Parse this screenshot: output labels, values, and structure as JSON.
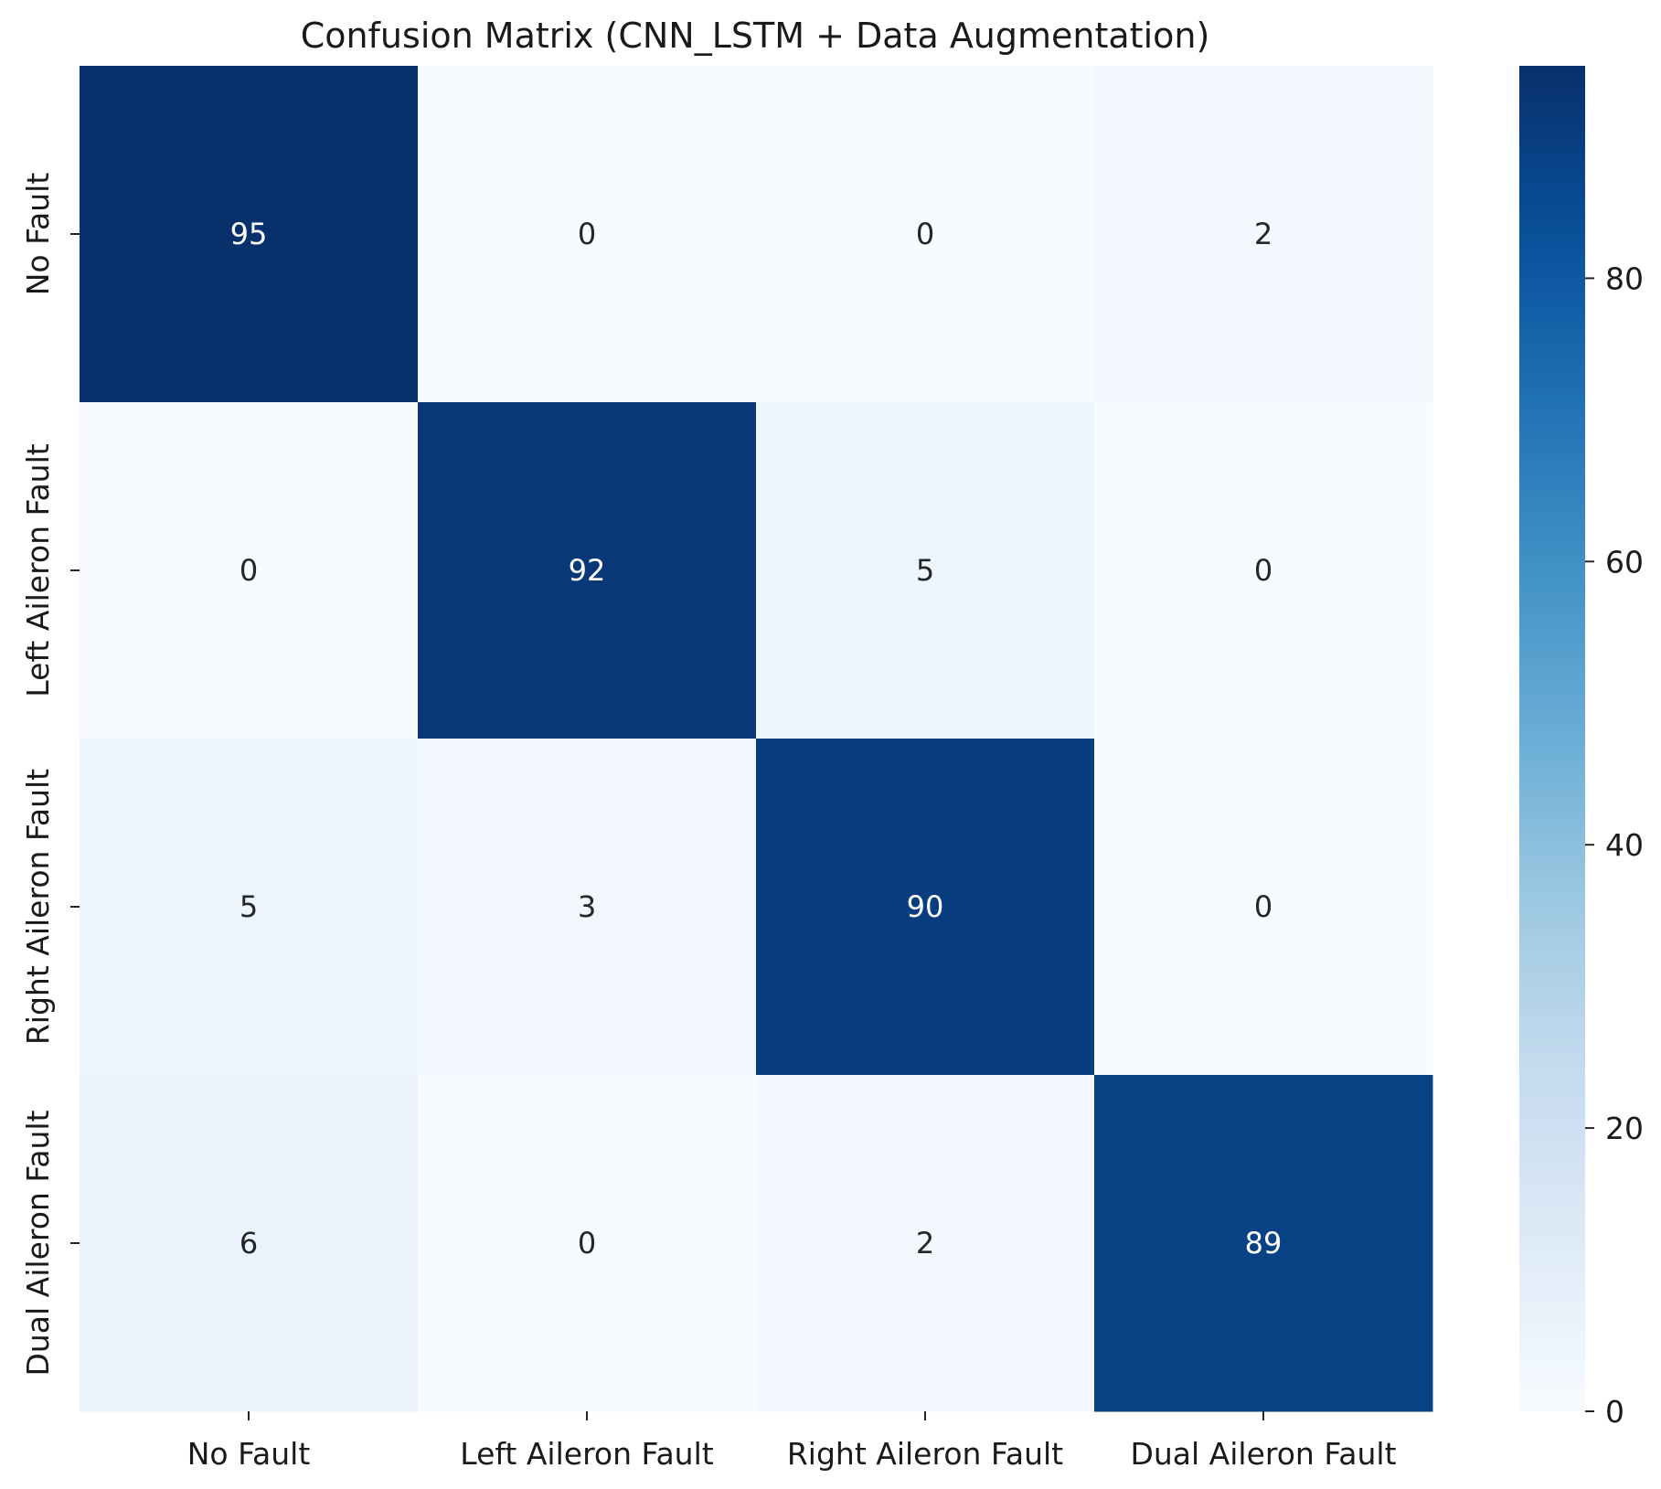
{
  "chart_data": {
    "type": "heatmap",
    "title": "Confusion Matrix (CNN_LSTM + Data Augmentation)",
    "xlabel": "",
    "ylabel": "",
    "x_categories": [
      "No Fault",
      "Left Aileron Fault",
      "Right Aileron Fault",
      "Dual Aileron Fault"
    ],
    "y_categories": [
      "No Fault",
      "Left Aileron Fault",
      "Right Aileron Fault",
      "Dual Aileron Fault"
    ],
    "values": [
      [
        95,
        0,
        0,
        2
      ],
      [
        0,
        92,
        5,
        0
      ],
      [
        5,
        3,
        90,
        0
      ],
      [
        6,
        0,
        2,
        89
      ]
    ],
    "colormap": "Blues",
    "colorbar": {
      "range": [
        0,
        95
      ],
      "ticks": [
        0,
        20,
        40,
        60,
        80
      ],
      "position": "right"
    },
    "grid": false
  }
}
